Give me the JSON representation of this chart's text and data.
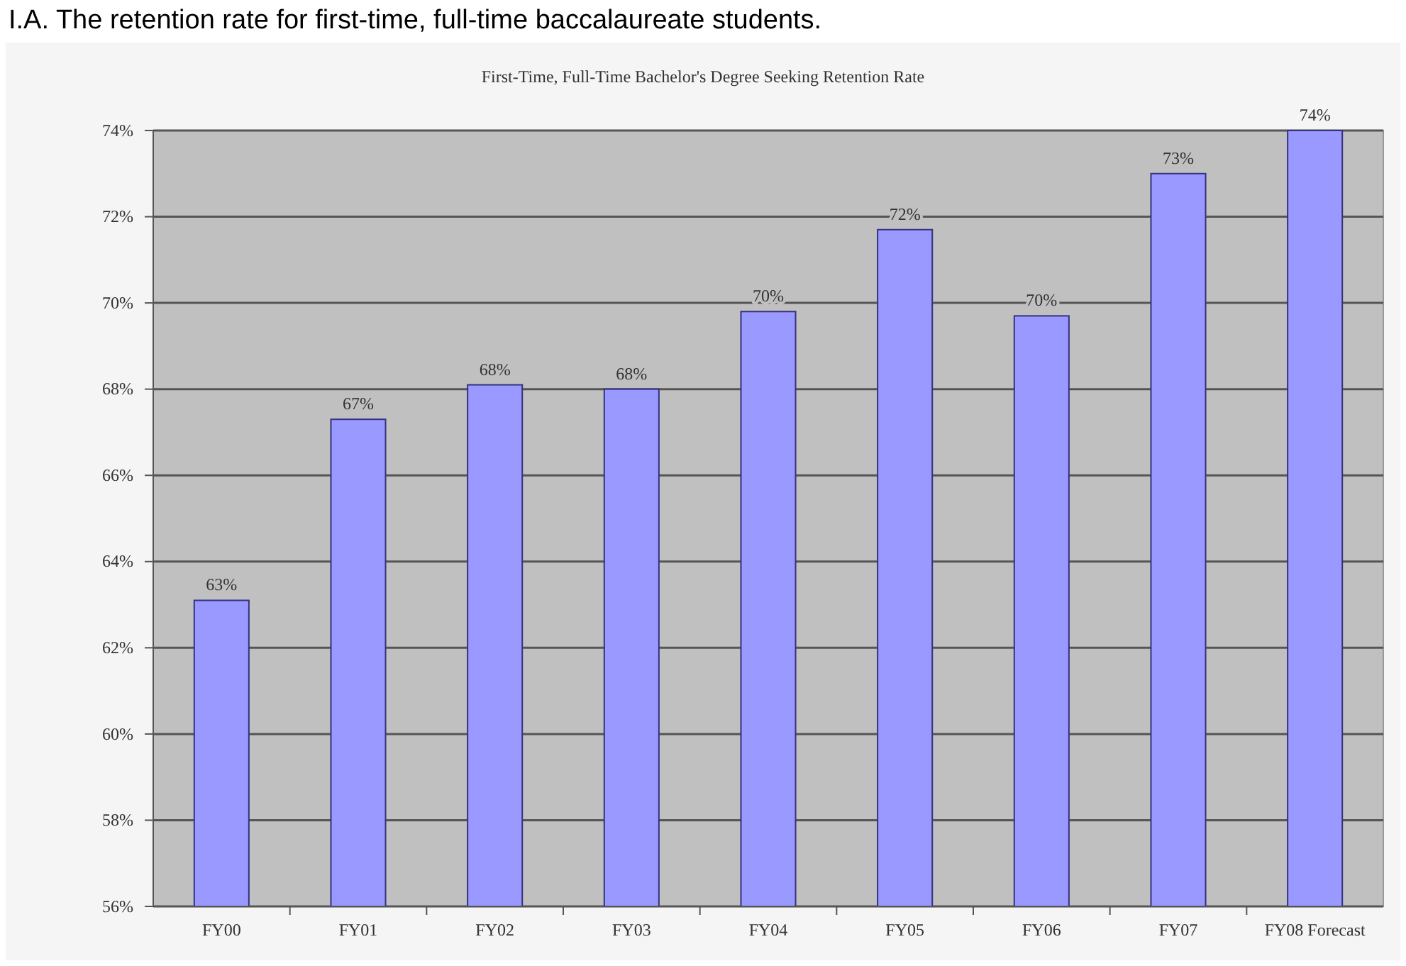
{
  "chart_data": {
    "type": "bar",
    "title": "First-Time, Full-Time Bachelor's Degree Seeking Retention Rate",
    "annotations": [
      "I.A. The retention rate for first-time, full-time baccalaureate students."
    ],
    "categories": [
      "FY00",
      "FY01",
      "FY02",
      "FY03",
      "FY04",
      "FY05",
      "FY06",
      "FY07",
      "FY08 Forecast"
    ],
    "values": [
      63.1,
      67.3,
      68.1,
      68.0,
      69.8,
      71.7,
      69.7,
      73.0,
      74.0
    ],
    "value_labels": [
      "63%",
      "67%",
      "68%",
      "68%",
      "70%",
      "72%",
      "70%",
      "73%",
      "74%"
    ],
    "color": "#9999ff",
    "ylim": [
      56,
      74
    ],
    "yticks": [
      {
        "value": 56,
        "label": "56%"
      },
      {
        "value": 58,
        "label": "58%"
      },
      {
        "value": 60,
        "label": "60%"
      },
      {
        "value": 62,
        "label": "62%"
      },
      {
        "value": 64,
        "label": "64%"
      },
      {
        "value": 66,
        "label": "66%"
      },
      {
        "value": 68,
        "label": "68%"
      },
      {
        "value": 70,
        "label": "70%"
      },
      {
        "value": 72,
        "label": "72%"
      },
      {
        "value": 74,
        "label": "74%"
      }
    ],
    "grid": "y"
  }
}
